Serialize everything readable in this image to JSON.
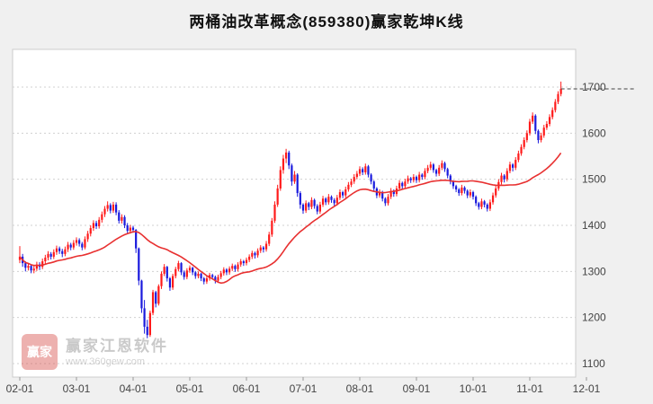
{
  "title": "两桶油改革概念(859380)赢家乾坤K线",
  "watermark": {
    "logo_text": "赢家",
    "name": "赢家江恩软件",
    "url": "www.360gew.com"
  },
  "colors": {
    "bg": "#f0f0f0",
    "plot_bg": "#ffffff",
    "plot_border": "#cccccc",
    "grid": "#d0d0d0",
    "up": "#ff1a1a",
    "down": "#1a1add",
    "ma": "#e83030",
    "last_price_line": "#444444",
    "axis_text": "#444444",
    "title_text": "#111111"
  },
  "chart_data": {
    "type": "candlestick",
    "title": "两桶油改革概念(859380)赢家乾坤K线",
    "symbol": "859380",
    "xlabel": "",
    "ylabel": "",
    "x_tick_labels": [
      "02-01",
      "03-01",
      "04-01",
      "05-01",
      "06-01",
      "07-01",
      "08-01",
      "09-01",
      "10-01",
      "11-01",
      "12-01"
    ],
    "y_ticks": [
      1700,
      1600,
      1500,
      1400,
      1300,
      1200,
      1100
    ],
    "ylim": [
      1100,
      1700
    ],
    "grid": true,
    "candles_per_month": 20,
    "ma_window": 30,
    "ma_color_note": "red moving-average overlay",
    "last_price": 1696,
    "candles": [
      [
        1325,
        1355,
        1318,
        1332
      ],
      [
        1332,
        1338,
        1310,
        1318
      ],
      [
        1318,
        1322,
        1300,
        1308
      ],
      [
        1308,
        1318,
        1302,
        1312
      ],
      [
        1312,
        1315,
        1296,
        1302
      ],
      [
        1302,
        1312,
        1296,
        1306
      ],
      [
        1306,
        1321,
        1301,
        1315
      ],
      [
        1315,
        1320,
        1303,
        1310
      ],
      [
        1310,
        1328,
        1305,
        1322
      ],
      [
        1322,
        1336,
        1316,
        1330
      ],
      [
        1330,
        1344,
        1324,
        1338
      ],
      [
        1338,
        1342,
        1326,
        1332
      ],
      [
        1332,
        1348,
        1327,
        1342
      ],
      [
        1342,
        1356,
        1336,
        1350
      ],
      [
        1350,
        1354,
        1338,
        1344
      ],
      [
        1344,
        1349,
        1331,
        1338
      ],
      [
        1338,
        1354,
        1333,
        1348
      ],
      [
        1348,
        1364,
        1342,
        1358
      ],
      [
        1358,
        1362,
        1346,
        1352
      ],
      [
        1352,
        1368,
        1347,
        1362
      ],
      [
        1362,
        1374,
        1356,
        1368
      ],
      [
        1368,
        1372,
        1354,
        1360
      ],
      [
        1360,
        1364,
        1346,
        1352
      ],
      [
        1352,
        1376,
        1348,
        1370
      ],
      [
        1370,
        1388,
        1364,
        1382
      ],
      [
        1382,
        1400,
        1376,
        1394
      ],
      [
        1394,
        1411,
        1388,
        1405
      ],
      [
        1405,
        1410,
        1392,
        1398
      ],
      [
        1398,
        1418,
        1393,
        1412
      ],
      [
        1412,
        1430,
        1406,
        1424
      ],
      [
        1424,
        1442,
        1418,
        1436
      ],
      [
        1436,
        1452,
        1430,
        1444
      ],
      [
        1444,
        1448,
        1426,
        1432
      ],
      [
        1432,
        1451,
        1427,
        1445
      ],
      [
        1445,
        1450,
        1422,
        1428
      ],
      [
        1428,
        1433,
        1404,
        1410
      ],
      [
        1410,
        1424,
        1404,
        1418
      ],
      [
        1418,
        1422,
        1394,
        1400
      ],
      [
        1400,
        1405,
        1382,
        1388
      ],
      [
        1388,
        1401,
        1382,
        1395
      ],
      [
        1395,
        1399,
        1384,
        1390
      ],
      [
        1390,
        1392,
        1340,
        1350
      ],
      [
        1350,
        1352,
        1270,
        1280
      ],
      [
        1280,
        1282,
        1210,
        1220
      ],
      [
        1220,
        1238,
        1165,
        1180
      ],
      [
        1180,
        1195,
        1155,
        1162
      ],
      [
        1162,
        1215,
        1158,
        1210
      ],
      [
        1210,
        1260,
        1205,
        1255
      ],
      [
        1255,
        1258,
        1222,
        1230
      ],
      [
        1230,
        1272,
        1226,
        1268
      ],
      [
        1268,
        1300,
        1262,
        1295
      ],
      [
        1295,
        1316,
        1290,
        1310
      ],
      [
        1310,
        1312,
        1278,
        1285
      ],
      [
        1285,
        1288,
        1258,
        1265
      ],
      [
        1265,
        1295,
        1260,
        1290
      ],
      [
        1290,
        1310,
        1285,
        1305
      ],
      [
        1305,
        1323,
        1300,
        1318
      ],
      [
        1318,
        1320,
        1292,
        1298
      ],
      [
        1298,
        1302,
        1282,
        1288
      ],
      [
        1288,
        1307,
        1283,
        1302
      ],
      [
        1302,
        1313,
        1297,
        1308
      ],
      [
        1308,
        1310,
        1292,
        1298
      ],
      [
        1298,
        1301,
        1284,
        1290
      ],
      [
        1290,
        1300,
        1285,
        1295
      ],
      [
        1295,
        1297,
        1279,
        1285
      ],
      [
        1285,
        1288,
        1272,
        1278
      ],
      [
        1278,
        1290,
        1273,
        1285
      ],
      [
        1285,
        1297,
        1280,
        1292
      ],
      [
        1292,
        1295,
        1282,
        1288
      ],
      [
        1288,
        1291,
        1274,
        1280
      ],
      [
        1280,
        1293,
        1275,
        1288
      ],
      [
        1288,
        1301,
        1283,
        1296
      ],
      [
        1296,
        1309,
        1291,
        1304
      ],
      [
        1304,
        1307,
        1292,
        1298
      ],
      [
        1298,
        1311,
        1293,
        1306
      ],
      [
        1306,
        1317,
        1301,
        1312
      ],
      [
        1312,
        1315,
        1299,
        1305
      ],
      [
        1305,
        1320,
        1300,
        1315
      ],
      [
        1315,
        1327,
        1310,
        1322
      ],
      [
        1322,
        1325,
        1312,
        1318
      ],
      [
        1318,
        1330,
        1313,
        1325
      ],
      [
        1325,
        1337,
        1320,
        1332
      ],
      [
        1332,
        1345,
        1327,
        1340
      ],
      [
        1340,
        1343,
        1328,
        1335
      ],
      [
        1335,
        1350,
        1330,
        1345
      ],
      [
        1345,
        1357,
        1340,
        1352
      ],
      [
        1352,
        1355,
        1341,
        1348
      ],
      [
        1348,
        1366,
        1343,
        1360
      ],
      [
        1360,
        1386,
        1355,
        1380
      ],
      [
        1380,
        1416,
        1375,
        1410
      ],
      [
        1410,
        1452,
        1405,
        1445
      ],
      [
        1445,
        1488,
        1440,
        1480
      ],
      [
        1480,
        1528,
        1475,
        1520
      ],
      [
        1520,
        1553,
        1512,
        1545
      ],
      [
        1545,
        1566,
        1535,
        1558
      ],
      [
        1558,
        1562,
        1522,
        1530
      ],
      [
        1530,
        1534,
        1486,
        1495
      ],
      [
        1495,
        1518,
        1490,
        1510
      ],
      [
        1510,
        1513,
        1462,
        1470
      ],
      [
        1470,
        1474,
        1436,
        1445
      ],
      [
        1445,
        1448,
        1425,
        1432
      ],
      [
        1432,
        1454,
        1427,
        1448
      ],
      [
        1448,
        1451,
        1433,
        1440
      ],
      [
        1440,
        1461,
        1435,
        1455
      ],
      [
        1455,
        1458,
        1436,
        1442
      ],
      [
        1442,
        1446,
        1424,
        1430
      ],
      [
        1430,
        1451,
        1425,
        1445
      ],
      [
        1445,
        1464,
        1440,
        1458
      ],
      [
        1458,
        1461,
        1444,
        1450
      ],
      [
        1450,
        1468,
        1445,
        1462
      ],
      [
        1462,
        1465,
        1449,
        1455
      ],
      [
        1455,
        1459,
        1442,
        1448
      ],
      [
        1448,
        1466,
        1443,
        1460
      ],
      [
        1460,
        1478,
        1455,
        1472
      ],
      [
        1472,
        1475,
        1459,
        1465
      ],
      [
        1465,
        1484,
        1460,
        1478
      ],
      [
        1478,
        1494,
        1473,
        1488
      ],
      [
        1488,
        1501,
        1483,
        1495
      ],
      [
        1495,
        1511,
        1490,
        1505
      ],
      [
        1505,
        1518,
        1500,
        1512
      ],
      [
        1512,
        1528,
        1507,
        1522
      ],
      [
        1522,
        1526,
        1509,
        1515
      ],
      [
        1515,
        1534,
        1510,
        1528
      ],
      [
        1528,
        1531,
        1504,
        1510
      ],
      [
        1510,
        1513,
        1489,
        1495
      ],
      [
        1495,
        1498,
        1474,
        1480
      ],
      [
        1480,
        1483,
        1459,
        1465
      ],
      [
        1465,
        1478,
        1460,
        1472
      ],
      [
        1472,
        1475,
        1452,
        1458
      ],
      [
        1458,
        1461,
        1442,
        1448
      ],
      [
        1448,
        1468,
        1443,
        1462
      ],
      [
        1462,
        1481,
        1457,
        1475
      ],
      [
        1475,
        1478,
        1462,
        1468
      ],
      [
        1468,
        1486,
        1463,
        1480
      ],
      [
        1480,
        1498,
        1475,
        1492
      ],
      [
        1492,
        1495,
        1479,
        1485
      ],
      [
        1485,
        1501,
        1480,
        1495
      ],
      [
        1495,
        1508,
        1490,
        1502
      ],
      [
        1502,
        1505,
        1492,
        1498
      ],
      [
        1498,
        1511,
        1493,
        1505
      ],
      [
        1505,
        1508,
        1492,
        1498
      ],
      [
        1498,
        1516,
        1493,
        1510
      ],
      [
        1510,
        1513,
        1499,
        1505
      ],
      [
        1505,
        1524,
        1500,
        1518
      ],
      [
        1518,
        1531,
        1513,
        1525
      ],
      [
        1525,
        1538,
        1520,
        1532
      ],
      [
        1532,
        1535,
        1514,
        1520
      ],
      [
        1520,
        1523,
        1506,
        1512
      ],
      [
        1512,
        1531,
        1507,
        1525
      ],
      [
        1525,
        1541,
        1520,
        1535
      ],
      [
        1535,
        1538,
        1516,
        1522
      ],
      [
        1522,
        1525,
        1502,
        1508
      ],
      [
        1508,
        1511,
        1489,
        1495
      ],
      [
        1495,
        1498,
        1479,
        1485
      ],
      [
        1485,
        1488,
        1472,
        1478
      ],
      [
        1478,
        1481,
        1464,
        1470
      ],
      [
        1470,
        1488,
        1465,
        1482
      ],
      [
        1482,
        1485,
        1469,
        1475
      ],
      [
        1475,
        1478,
        1459,
        1465
      ],
      [
        1465,
        1478,
        1460,
        1472
      ],
      [
        1472,
        1475,
        1456,
        1462
      ],
      [
        1462,
        1465,
        1442,
        1448
      ],
      [
        1448,
        1451,
        1434,
        1440
      ],
      [
        1440,
        1458,
        1435,
        1452
      ],
      [
        1452,
        1455,
        1439,
        1445
      ],
      [
        1445,
        1448,
        1430,
        1436
      ],
      [
        1436,
        1456,
        1431,
        1450
      ],
      [
        1450,
        1471,
        1445,
        1465
      ],
      [
        1465,
        1486,
        1460,
        1480
      ],
      [
        1480,
        1500,
        1475,
        1494
      ],
      [
        1494,
        1514,
        1489,
        1508
      ],
      [
        1508,
        1511,
        1493,
        1500
      ],
      [
        1500,
        1524,
        1495,
        1518
      ],
      [
        1518,
        1538,
        1513,
        1532
      ],
      [
        1532,
        1535,
        1517,
        1525
      ],
      [
        1525,
        1548,
        1520,
        1542
      ],
      [
        1542,
        1562,
        1537,
        1556
      ],
      [
        1556,
        1576,
        1551,
        1570
      ],
      [
        1570,
        1591,
        1565,
        1585
      ],
      [
        1585,
        1606,
        1580,
        1600
      ],
      [
        1600,
        1631,
        1595,
        1625
      ],
      [
        1625,
        1645,
        1620,
        1638
      ],
      [
        1638,
        1641,
        1598,
        1605
      ],
      [
        1605,
        1608,
        1578,
        1585
      ],
      [
        1585,
        1601,
        1580,
        1595
      ],
      [
        1595,
        1618,
        1590,
        1612
      ],
      [
        1612,
        1626,
        1607,
        1620
      ],
      [
        1620,
        1641,
        1615,
        1635
      ],
      [
        1635,
        1656,
        1630,
        1650
      ],
      [
        1650,
        1674,
        1645,
        1668
      ],
      [
        1668,
        1691,
        1663,
        1685
      ],
      [
        1685,
        1712,
        1680,
        1696
      ]
    ]
  }
}
